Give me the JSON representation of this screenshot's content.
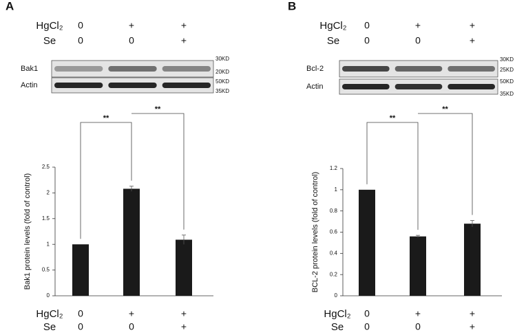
{
  "chart_data": [
    {
      "type": "bar",
      "panel": "A",
      "treatment_rows": [
        {
          "name": "HgCl₂",
          "values": [
            "0",
            "+",
            "+"
          ]
        },
        {
          "name": "Se",
          "values": [
            "0",
            "0",
            "+"
          ]
        }
      ],
      "blots": [
        {
          "name": "Bak1",
          "markers": [
            "30KD",
            "20KD"
          ]
        },
        {
          "name": "Actin",
          "markers": [
            "50KD",
            "35KD"
          ]
        }
      ],
      "y_label": "Bak1 protein levels (fold of control)",
      "values": [
        1,
        2.08,
        1.09
      ],
      "errors": [
        0,
        0.05,
        0.09
      ],
      "color": "#1a1a1a",
      "ylim": [
        0,
        2.5
      ],
      "yticks": [
        0,
        0.5,
        1,
        1.5,
        2,
        2.5
      ],
      "significance": [
        {
          "label": "**",
          "between": [
            0,
            1
          ]
        },
        {
          "label": "**",
          "between": [
            1,
            2
          ]
        }
      ]
    },
    {
      "type": "bar",
      "panel": "B",
      "treatment_rows": [
        {
          "name": "HgCl₂",
          "values": [
            "0",
            "+",
            "+"
          ]
        },
        {
          "name": "Se",
          "values": [
            "0",
            "0",
            "+"
          ]
        }
      ],
      "blots": [
        {
          "name": "Bcl-2",
          "markers": [
            "30KD",
            "25KD"
          ]
        },
        {
          "name": "Actin",
          "markers": [
            "50KD",
            "35KD"
          ]
        }
      ],
      "y_label": "BCL-2 protein levels (fold of control)",
      "values": [
        1,
        0.56,
        0.68
      ],
      "errors": [
        0,
        0.01,
        0.03
      ],
      "color": "#1a1a1a",
      "ylim": [
        0,
        1.2
      ],
      "yticks": [
        0,
        0.2,
        0.4,
        0.6,
        0.8,
        1,
        1.2
      ],
      "significance": [
        {
          "label": "**",
          "between": [
            0,
            1
          ]
        },
        {
          "label": "**",
          "between": [
            1,
            2
          ]
        }
      ]
    }
  ]
}
